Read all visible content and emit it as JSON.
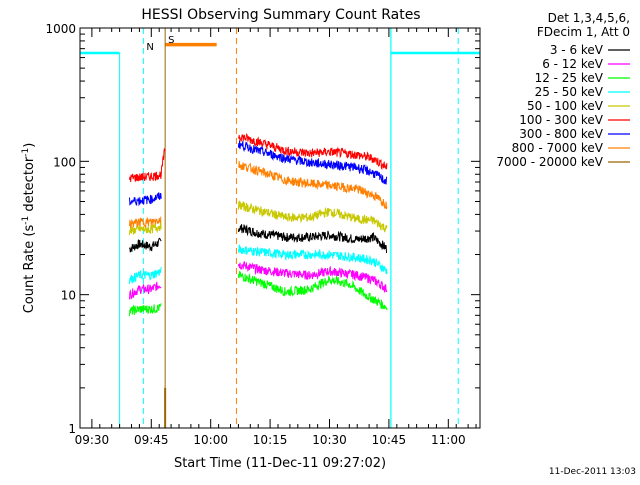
{
  "chart_data": {
    "type": "line",
    "title": "HESSI Observing Summary Count Rates",
    "xlabel": "Start Time (11-Dec-11 09:27:02)",
    "ylabel_main": "Count Rate (s",
    "ylabel_sup1": "-1",
    "ylabel_mid": " detector",
    "ylabel_sup2": "-1",
    "ylabel_end": ")",
    "y_scale": "log",
    "ylim": [
      1,
      1000
    ],
    "xlim_minutes_after_0927": [
      0,
      101
    ],
    "x_ticks": [
      {
        "label": "09:30",
        "minutes_after_0927": 3
      },
      {
        "label": "09:45",
        "minutes_after_0927": 18
      },
      {
        "label": "10:00",
        "minutes_after_0927": 33
      },
      {
        "label": "10:15",
        "minutes_after_0927": 48
      },
      {
        "label": "10:30",
        "minutes_after_0927": 63
      },
      {
        "label": "10:45",
        "minutes_after_0927": 78
      },
      {
        "label": "11:00",
        "minutes_after_0927": 93
      }
    ],
    "y_ticks": [
      {
        "label": "1",
        "value": 1
      },
      {
        "label": "10",
        "value": 10
      },
      {
        "label": "100",
        "value": 100
      },
      {
        "label": "1000",
        "value": 1000
      }
    ],
    "legend_header": [
      "Det 1,3,4,5,6,",
      "FDecim 1, Att 0"
    ],
    "legend_placement": "right",
    "footer_timestamp": "11-Dec-2011 13:03",
    "markers": {
      "night_label": "N",
      "saa_label": "S"
    },
    "night_color": "#00ffff",
    "saa_color": "#ff8000",
    "series": [
      {
        "name": "3 - 6 keV",
        "color": "#000000",
        "seg1": [
          [
            12.5,
            22
          ],
          [
            15,
            24
          ],
          [
            18,
            23
          ],
          [
            20.5,
            25
          ]
        ],
        "seg2": [
          [
            40,
            32
          ],
          [
            45,
            29
          ],
          [
            52,
            27
          ],
          [
            58,
            27
          ],
          [
            63,
            28
          ],
          [
            70,
            26
          ],
          [
            74,
            27
          ],
          [
            77.5,
            22
          ]
        ]
      },
      {
        "name": "6 - 12 keV",
        "color": "#ff00ff",
        "seg1": [
          [
            12.5,
            10
          ],
          [
            15,
            11
          ],
          [
            18,
            11
          ],
          [
            20.5,
            12
          ]
        ],
        "seg2": [
          [
            40,
            17
          ],
          [
            45,
            15.5
          ],
          [
            52,
            14.5
          ],
          [
            58,
            14
          ],
          [
            63,
            15
          ],
          [
            70,
            14
          ],
          [
            74,
            13
          ],
          [
            77.5,
            11
          ]
        ]
      },
      {
        "name": "12 - 25 keV",
        "color": "#00ff00",
        "seg1": [
          [
            12.5,
            7.5
          ],
          [
            15,
            7.8
          ],
          [
            18,
            7.8
          ],
          [
            20.5,
            8
          ]
        ],
        "seg2": [
          [
            40,
            14
          ],
          [
            45,
            12.5
          ],
          [
            52,
            10.5
          ],
          [
            58,
            11
          ],
          [
            63,
            13
          ],
          [
            68,
            12
          ],
          [
            72,
            10
          ],
          [
            77.5,
            8
          ]
        ]
      },
      {
        "name": "25 - 50 keV",
        "color": "#00ffff",
        "seg1": [
          [
            12.5,
            13
          ],
          [
            15,
            14
          ],
          [
            18,
            14
          ],
          [
            20.5,
            15
          ]
        ],
        "seg2": [
          [
            40,
            22
          ],
          [
            45,
            21
          ],
          [
            52,
            20
          ],
          [
            58,
            20
          ],
          [
            63,
            20
          ],
          [
            70,
            19
          ],
          [
            74,
            18
          ],
          [
            77.5,
            15
          ]
        ]
      },
      {
        "name": "50 - 100 keV",
        "color": "#c8c800",
        "seg1": [
          [
            12.5,
            30
          ],
          [
            15,
            31
          ],
          [
            18,
            31
          ],
          [
            20.5,
            33
          ]
        ],
        "seg2": [
          [
            40,
            47
          ],
          [
            45,
            43
          ],
          [
            52,
            38
          ],
          [
            58,
            38
          ],
          [
            63,
            42
          ],
          [
            70,
            37
          ],
          [
            74,
            36
          ],
          [
            77.5,
            31
          ]
        ]
      },
      {
        "name": "100 - 300 keV",
        "color": "#ff0000",
        "seg1": [
          [
            12.5,
            75
          ],
          [
            15,
            76
          ],
          [
            18,
            77
          ],
          [
            20.5,
            80
          ],
          [
            21.5,
            125
          ]
        ],
        "seg2": [
          [
            40,
            155
          ],
          [
            45,
            140
          ],
          [
            52,
            120
          ],
          [
            58,
            115
          ],
          [
            63,
            118
          ],
          [
            70,
            112
          ],
          [
            74,
            105
          ],
          [
            77.5,
            90
          ]
        ]
      },
      {
        "name": "300 - 800 keV",
        "color": "#0000ff",
        "seg1": [
          [
            12.5,
            50
          ],
          [
            15,
            51
          ],
          [
            18,
            52
          ],
          [
            20.5,
            55
          ]
        ],
        "seg2": [
          [
            40,
            135
          ],
          [
            45,
            120
          ],
          [
            52,
            105
          ],
          [
            58,
            98
          ],
          [
            63,
            95
          ],
          [
            70,
            90
          ],
          [
            74,
            82
          ],
          [
            77.5,
            70
          ]
        ]
      },
      {
        "name": "800 - 7000 keV",
        "color": "#ff8000",
        "seg1": [
          [
            12.5,
            34
          ],
          [
            15,
            35
          ],
          [
            18,
            35
          ],
          [
            20.5,
            37
          ]
        ],
        "seg2": [
          [
            40,
            95
          ],
          [
            45,
            85
          ],
          [
            52,
            72
          ],
          [
            58,
            68
          ],
          [
            63,
            66
          ],
          [
            70,
            62
          ],
          [
            74,
            56
          ],
          [
            77.5,
            47
          ]
        ]
      },
      {
        "name": "7000 - 20000 keV",
        "color": "#996600",
        "seg1": [],
        "seg2": []
      }
    ]
  }
}
